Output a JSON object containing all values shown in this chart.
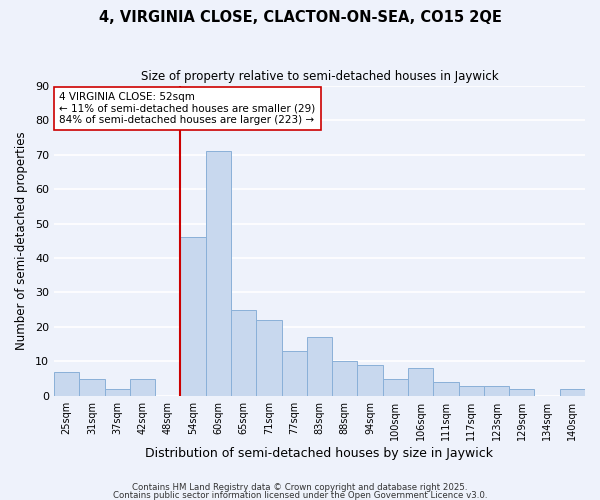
{
  "title": "4, VIRGINIA CLOSE, CLACTON-ON-SEA, CO15 2QE",
  "subtitle": "Size of property relative to semi-detached houses in Jaywick",
  "xlabel": "Distribution of semi-detached houses by size in Jaywick",
  "ylabel": "Number of semi-detached properties",
  "categories": [
    "25sqm",
    "31sqm",
    "37sqm",
    "42sqm",
    "48sqm",
    "54sqm",
    "60sqm",
    "65sqm",
    "71sqm",
    "77sqm",
    "83sqm",
    "88sqm",
    "94sqm",
    "100sqm",
    "106sqm",
    "111sqm",
    "117sqm",
    "123sqm",
    "129sqm",
    "134sqm",
    "140sqm"
  ],
  "values": [
    7,
    5,
    2,
    5,
    0,
    46,
    71,
    25,
    22,
    13,
    17,
    10,
    9,
    5,
    8,
    4,
    3,
    3,
    2,
    0,
    2
  ],
  "bar_color": "#c8d8ee",
  "bar_edge_color": "#8ab0d8",
  "background_color": "#eef2fb",
  "grid_color": "#ffffff",
  "vline_color": "#cc0000",
  "vline_index": 5,
  "ylim": [
    0,
    90
  ],
  "yticks": [
    0,
    10,
    20,
    30,
    40,
    50,
    60,
    70,
    80,
    90
  ],
  "annotation_title": "4 VIRGINIA CLOSE: 52sqm",
  "annotation_line1": "← 11% of semi-detached houses are smaller (29)",
  "annotation_line2": "84% of semi-detached houses are larger (223) →",
  "footer1": "Contains HM Land Registry data © Crown copyright and database right 2025.",
  "footer2": "Contains public sector information licensed under the Open Government Licence v3.0."
}
